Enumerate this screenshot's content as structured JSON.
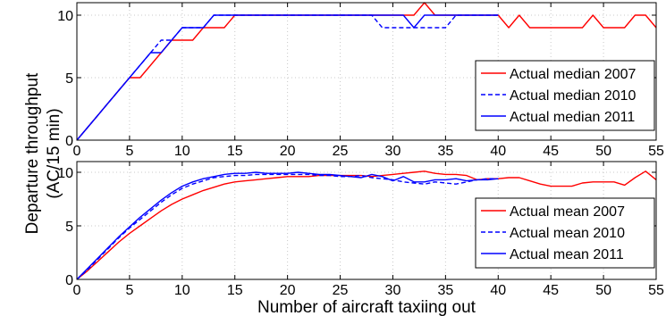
{
  "chart_data": {
    "shared": {
      "ylabel": "Departure throughput",
      "ylabel2": "(AC/15 min)",
      "xlabel": "Number of aircraft taxiing out"
    },
    "panels": [
      {
        "type": "line",
        "id": "median",
        "xlim": [
          0,
          55
        ],
        "ylim": [
          0,
          11
        ],
        "x_ticks": [
          0,
          5,
          10,
          15,
          20,
          25,
          30,
          35,
          40,
          45,
          50,
          55
        ],
        "y_ticks": [
          0,
          5,
          10
        ],
        "grid": true,
        "legend_position": "right",
        "series": [
          {
            "name": "Actual median 2007",
            "color": "#ff0000",
            "dash": "solid",
            "x": [
              0,
              1,
              2,
              3,
              4,
              5,
              6,
              7,
              8,
              9,
              10,
              11,
              12,
              13,
              14,
              15,
              16,
              17,
              18,
              19,
              20,
              21,
              22,
              23,
              24,
              25,
              26,
              27,
              28,
              29,
              30,
              31,
              32,
              33,
              34,
              35,
              36,
              37,
              38,
              39,
              40,
              41,
              42,
              43,
              44,
              45,
              46,
              47,
              48,
              49,
              50,
              51,
              52,
              53,
              54,
              55
            ],
            "y": [
              0,
              1,
              2,
              3,
              4,
              5,
              5,
              6,
              7,
              8,
              8,
              8,
              9,
              9,
              9,
              10,
              10,
              10,
              10,
              10,
              10,
              10,
              10,
              10,
              10,
              10,
              10,
              10,
              10,
              10,
              10,
              10,
              10,
              11,
              10,
              10,
              10,
              10,
              10,
              10,
              10,
              9,
              10,
              9,
              9,
              9,
              9,
              9,
              9,
              10,
              9,
              9,
              9,
              10,
              10,
              9
            ]
          },
          {
            "name": "Actual median 2010",
            "color": "#0000ff",
            "dash": "dashed",
            "x": [
              0,
              1,
              2,
              3,
              4,
              5,
              6,
              7,
              8,
              9,
              10,
              11,
              12,
              13,
              14,
              15,
              16,
              17,
              18,
              19,
              20,
              21,
              22,
              23,
              24,
              25,
              26,
              27,
              28,
              29,
              30,
              31,
              32,
              33,
              34,
              35,
              36,
              37,
              38,
              39,
              40
            ],
            "y": [
              0,
              1,
              2,
              3,
              4,
              5,
              6,
              7,
              8,
              8,
              9,
              9,
              9,
              10,
              10,
              10,
              10,
              10,
              10,
              10,
              10,
              10,
              10,
              10,
              10,
              10,
              10,
              10,
              10,
              9,
              9,
              9,
              9,
              9,
              9,
              9,
              10,
              10,
              10,
              10,
              10
            ]
          },
          {
            "name": "Actual median 2011",
            "color": "#0000ff",
            "dash": "solid",
            "x": [
              0,
              1,
              2,
              3,
              4,
              5,
              6,
              7,
              8,
              9,
              10,
              11,
              12,
              13,
              14,
              15,
              16,
              17,
              18,
              19,
              20,
              21,
              22,
              23,
              24,
              25,
              26,
              27,
              28,
              29,
              30,
              31,
              32,
              33,
              34,
              35,
              36,
              37,
              38,
              39,
              40
            ],
            "y": [
              0,
              1,
              2,
              3,
              4,
              5,
              6,
              7,
              7,
              8,
              9,
              9,
              9,
              10,
              10,
              10,
              10,
              10,
              10,
              10,
              10,
              10,
              10,
              10,
              10,
              10,
              10,
              10,
              10,
              10,
              10,
              10,
              9,
              10,
              10,
              10,
              10,
              10,
              10,
              10,
              10
            ]
          }
        ]
      },
      {
        "type": "line",
        "id": "mean",
        "xlim": [
          0,
          55
        ],
        "ylim": [
          0,
          11
        ],
        "x_ticks": [
          0,
          5,
          10,
          15,
          20,
          25,
          30,
          35,
          40,
          45,
          50,
          55
        ],
        "y_ticks": [
          0,
          5,
          10
        ],
        "grid": true,
        "legend_position": "right",
        "series": [
          {
            "name": "Actual mean 2007",
            "color": "#ff0000",
            "dash": "solid",
            "x": [
              0,
              1,
              2,
              3,
              4,
              5,
              6,
              7,
              8,
              9,
              10,
              11,
              12,
              13,
              14,
              15,
              16,
              17,
              18,
              19,
              20,
              21,
              22,
              23,
              24,
              25,
              26,
              27,
              28,
              29,
              30,
              31,
              32,
              33,
              34,
              35,
              36,
              37,
              38,
              39,
              40,
              41,
              42,
              43,
              44,
              45,
              46,
              47,
              48,
              49,
              50,
              51,
              52,
              53,
              54,
              55
            ],
            "y": [
              0,
              0.8,
              1.7,
              2.6,
              3.5,
              4.3,
              5.0,
              5.7,
              6.4,
              7.0,
              7.5,
              7.9,
              8.3,
              8.6,
              8.9,
              9.1,
              9.2,
              9.3,
              9.4,
              9.5,
              9.6,
              9.6,
              9.6,
              9.7,
              9.7,
              9.7,
              9.7,
              9.7,
              9.6,
              9.7,
              9.8,
              9.9,
              10.0,
              10.1,
              9.9,
              9.8,
              9.8,
              9.7,
              9.3,
              9.4,
              9.4,
              9.5,
              9.5,
              9.2,
              8.9,
              8.7,
              8.7,
              8.7,
              9.0,
              9.1,
              9.1,
              9.1,
              8.8,
              9.5,
              10.1,
              9.3
            ]
          },
          {
            "name": "Actual mean 2010",
            "color": "#0000ff",
            "dash": "dashed",
            "x": [
              0,
              1,
              2,
              3,
              4,
              5,
              6,
              7,
              8,
              9,
              10,
              11,
              12,
              13,
              14,
              15,
              16,
              17,
              18,
              19,
              20,
              21,
              22,
              23,
              24,
              25,
              26,
              27,
              28,
              29,
              30,
              31,
              32,
              33,
              34,
              35,
              36,
              37,
              38,
              39,
              40
            ],
            "y": [
              0,
              0.9,
              1.9,
              2.9,
              3.9,
              4.8,
              5.6,
              6.4,
              7.2,
              7.9,
              8.5,
              8.9,
              9.2,
              9.5,
              9.6,
              9.7,
              9.7,
              9.8,
              9.8,
              9.8,
              9.8,
              9.8,
              9.8,
              9.7,
              9.7,
              9.6,
              9.6,
              9.7,
              9.5,
              9.4,
              9.3,
              9.1,
              9.0,
              8.9,
              9.1,
              9.0,
              8.9,
              9.1,
              9.3,
              9.4,
              9.4
            ]
          },
          {
            "name": "Actual mean 2011",
            "color": "#0000ff",
            "dash": "solid",
            "x": [
              0,
              1,
              2,
              3,
              4,
              5,
              6,
              7,
              8,
              9,
              10,
              11,
              12,
              13,
              14,
              15,
              16,
              17,
              18,
              19,
              20,
              21,
              22,
              23,
              24,
              25,
              26,
              27,
              28,
              29,
              30,
              31,
              32,
              33,
              34,
              35,
              36,
              37,
              38,
              39,
              40
            ],
            "y": [
              0,
              1.0,
              2.0,
              3.0,
              4.0,
              4.9,
              5.8,
              6.6,
              7.4,
              8.1,
              8.7,
              9.1,
              9.4,
              9.6,
              9.8,
              9.9,
              9.9,
              10.0,
              9.9,
              9.9,
              9.9,
              10.0,
              9.9,
              9.8,
              9.8,
              9.7,
              9.6,
              9.5,
              9.8,
              9.6,
              9.2,
              9.6,
              9.1,
              9.1,
              9.3,
              9.3,
              9.4,
              9.2,
              9.3,
              9.3,
              9.4
            ]
          }
        ]
      }
    ]
  }
}
